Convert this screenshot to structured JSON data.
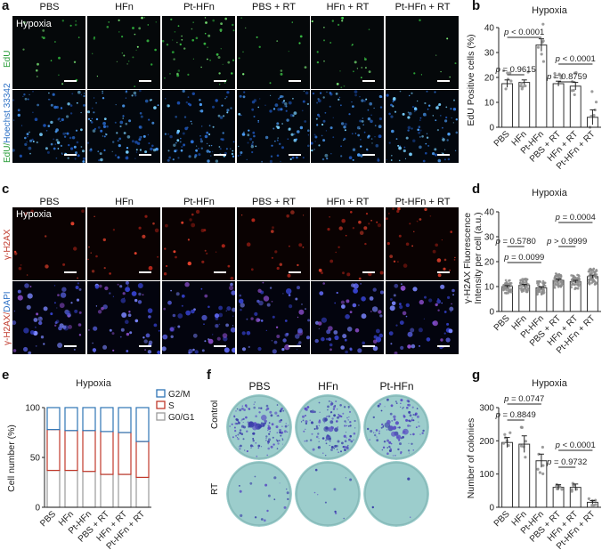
{
  "panels": {
    "a": {
      "letter": "a",
      "columns": [
        "PBS",
        "HFn",
        "Pt-HFn",
        "PBS + RT",
        "HFn + RT",
        "Pt-HFn + RT"
      ],
      "condition": "Hypoxia",
      "row1_label": "EdU",
      "row2_label_a": "EdU/",
      "row2_label_b": "Hoechst 33342"
    },
    "b": {
      "letter": "b",
      "title": "Hypoxia",
      "ylabel": "EdU Positive cells (%)",
      "p_values": [
        "p = 0.9615",
        "p < 0.0001",
        "p < 0.0001",
        "p = 0.8759"
      ]
    },
    "c": {
      "letter": "c",
      "columns": [
        "PBS",
        "HFn",
        "Pt-HFn",
        "PBS + RT",
        "HFn + RT",
        "Pt-HFn + RT"
      ],
      "condition": "Hypoxia",
      "row1_label": "γ-H2AX",
      "row2_label_a": "γ-H2AX/",
      "row2_label_b": "DAPI"
    },
    "d": {
      "letter": "d",
      "title": "Hypoxia",
      "ylabel1": "γ-H2AX Fluorescence",
      "ylabel2": "Intensity per cell (a.u.)",
      "p_values": [
        "p = 0.0099",
        "p = 0.5780",
        "p > 0.9999",
        "p = 0.0004"
      ]
    },
    "e": {
      "letter": "e",
      "title": "Hypoxia",
      "ylabel": "Cell number (%)",
      "legend": [
        "G2/M",
        "S",
        "G0/G1"
      ]
    },
    "f": {
      "letter": "f",
      "columns": [
        "PBS",
        "HFn",
        "Pt-HFn"
      ],
      "rows": [
        "Control",
        "RT"
      ]
    },
    "g": {
      "letter": "g",
      "title": "Hypoxia",
      "ylabel": "Number of colonies",
      "p_values": [
        "p = 0.8849",
        "p = 0.0747",
        "p = 0.9732",
        "p < 0.0001"
      ]
    }
  },
  "chart_data": [
    {
      "id": "b",
      "type": "bar",
      "title": "Hypoxia",
      "ylabel": "EdU Positive cells (%)",
      "categories": [
        "PBS",
        "HFn",
        "Pt-HFn",
        "PBS + RT",
        "HFn + RT",
        "Pt-HFn + RT"
      ],
      "values": [
        17.5,
        18,
        33,
        17.5,
        16.5,
        4
      ],
      "errors": [
        1.5,
        1,
        2.5,
        1,
        1.5,
        3
      ],
      "ylim": [
        0,
        40
      ],
      "yticks": [
        0,
        10,
        20,
        30,
        40
      ]
    },
    {
      "id": "d",
      "type": "bar",
      "title": "Hypoxia",
      "ylabel": "γ-H2AX Fluorescence Intensity per cell (a.u.)",
      "categories": [
        "PBS",
        "HFn",
        "Pt-HFn",
        "PBS + RT",
        "HFn + RT",
        "Pt-HFn + RT"
      ],
      "values": [
        10,
        10.5,
        9.5,
        12.5,
        12,
        14
      ],
      "errors": [
        0.4,
        0.4,
        0.4,
        0.5,
        0.5,
        0.6
      ],
      "ylim": [
        0,
        40
      ],
      "yticks": [
        0,
        10,
        20,
        30,
        40
      ]
    },
    {
      "id": "e",
      "type": "bar",
      "title": "Hypoxia",
      "ylabel": "Cell number (%)",
      "categories": [
        "PBS",
        "HFn",
        "Pt-HFn",
        "PBS + RT",
        "HFn + RT",
        "Pt-HFn + RT"
      ],
      "series": [
        {
          "name": "G0/G1",
          "values": [
            37,
            37,
            36,
            33,
            33,
            30
          ]
        },
        {
          "name": "S",
          "values": [
            41,
            40,
            41,
            43,
            42,
            36
          ]
        },
        {
          "name": "G2/M",
          "values": [
            22,
            23,
            23,
            24,
            25,
            34
          ]
        }
      ],
      "ylim": [
        0,
        100
      ],
      "yticks": [
        0,
        50,
        100
      ]
    },
    {
      "id": "g",
      "type": "bar",
      "title": "Hypoxia",
      "ylabel": "Number of colonies",
      "categories": [
        "PBS",
        "HFn",
        "Pt-HFn",
        "PBS + RT",
        "HFn + RT",
        "Pt-HFn + RT"
      ],
      "values": [
        195,
        190,
        140,
        60,
        60,
        15
      ],
      "errors": [
        15,
        25,
        20,
        8,
        10,
        5
      ],
      "ylim": [
        0,
        300
      ],
      "yticks": [
        0,
        100,
        200,
        300
      ]
    }
  ]
}
